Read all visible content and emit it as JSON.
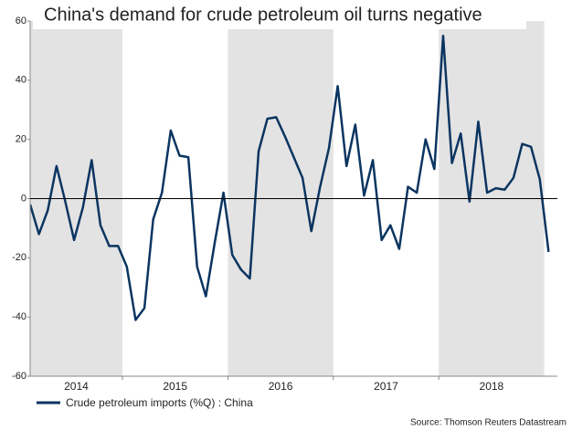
{
  "chart_data": {
    "type": "line",
    "title": "China's demand for crude petroleum oil turns negative",
    "periods": [
      "2014",
      "2015",
      "2016",
      "2017",
      "2018"
    ],
    "shaded": [
      true,
      false,
      true,
      false,
      true
    ],
    "series": [
      {
        "name": "Crude petroleum imports (%Q) : China",
        "color": "#0b3561",
        "values": [
          -2,
          -12,
          -4,
          11,
          -1,
          -14,
          -3,
          13,
          -9,
          -16,
          -16,
          -23,
          -41,
          -37,
          -7,
          2,
          23,
          14.5,
          14,
          -23,
          -33,
          -15,
          2,
          -19,
          -24,
          -27,
          16,
          27,
          27.5,
          21,
          14,
          7,
          -11,
          4,
          17,
          38,
          11,
          25,
          1,
          13,
          -14,
          -9,
          -17,
          4,
          2,
          20,
          10,
          55,
          12,
          22,
          -1,
          26,
          2,
          3.5,
          3,
          7,
          18.5,
          17.5,
          6.5,
          -18
        ]
      }
    ],
    "ylim": [
      -60,
      60
    ],
    "yticks": [
      -60,
      -40,
      -20,
      0,
      20,
      40,
      60
    ],
    "zero_line": true,
    "source": "Source: Thomson Reuters Datastream"
  }
}
